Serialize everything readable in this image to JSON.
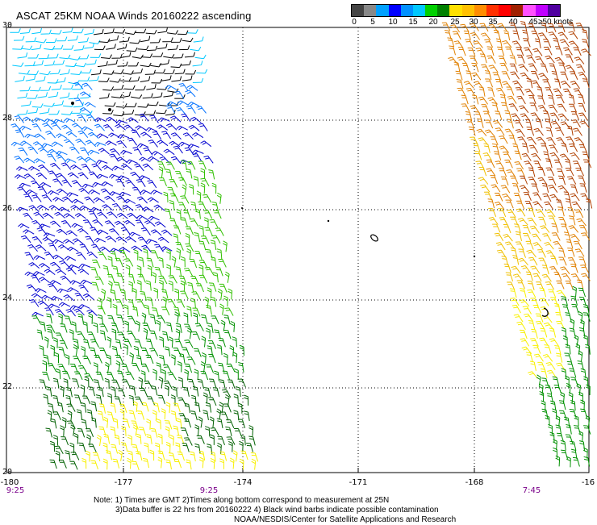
{
  "title": "ASCAT 25KM NOAA Winds 20160222 ascending",
  "scale": {
    "colors": [
      "#444444",
      "#888888",
      "#00a0ff",
      "#0000ff",
      "#0090ff",
      "#00c8ff",
      "#00d000",
      "#008000",
      "#ffe000",
      "#ffc000",
      "#ff8c00",
      "#ff3000",
      "#ff0000",
      "#a02000",
      "#ff50ff",
      "#c000ff",
      "#5000a0"
    ],
    "labels": [
      "0",
      "5",
      "10",
      "15",
      "20",
      "25",
      "30",
      "35",
      "40",
      "45",
      "≥50 knots"
    ]
  },
  "axes": {
    "lat_labels": [
      "30",
      "28",
      "26",
      "24",
      "22",
      "20"
    ],
    "lon_labels": [
      "-180",
      "-177",
      "-174",
      "-171",
      "-168",
      "-16"
    ]
  },
  "pass_times": [
    "9:25",
    "9:25",
    "7:45"
  ],
  "notes": {
    "line1": "Note: 1) Times are GMT 2)Times along bottom correspond to measurement at 25N",
    "line2": "3)Data buffer is 22 hrs from 20160222 4) Black wind barbs indicate possible contamination",
    "line3": "NOAA/NESDIS/Center for Satellite Applications and Research"
  },
  "wind_colors": {
    "calm": "#000000",
    "light": "#00c8ff",
    "moderate": "#0070ff",
    "blue": "#0000d0",
    "green_light": "#30c000",
    "green": "#009000",
    "green_dark": "#006000",
    "yellow": "#f8f000",
    "gold": "#f0c000",
    "orange": "#e08000",
    "brown": "#b04000"
  }
}
